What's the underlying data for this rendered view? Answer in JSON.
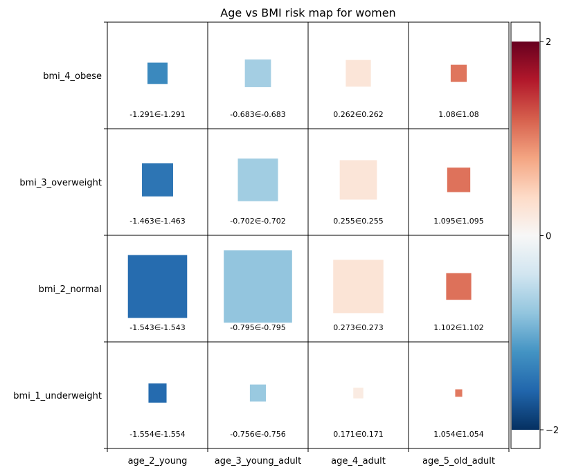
{
  "chart_data": {
    "type": "heatmap",
    "title": "Age vs BMI risk map for women",
    "xlabel": "",
    "ylabel": "",
    "x_categories": [
      "age_2_young",
      "age_3_young_adult",
      "age_4_adult",
      "age_5_old_adult"
    ],
    "y_categories": [
      "bmi_4_obese",
      "bmi_3_overweight",
      "bmi_2_normal",
      "bmi_1_underweight"
    ],
    "values": [
      [
        -1.291,
        -0.683,
        0.262,
        1.08
      ],
      [
        -1.463,
        -0.702,
        0.255,
        1.095
      ],
      [
        -1.543,
        -0.795,
        0.273,
        1.102
      ],
      [
        -1.554,
        -0.756,
        0.171,
        1.054
      ]
    ],
    "cell_labels": [
      [
        "-1.291∈-1.291",
        "-0.683∈-0.683",
        "0.262∈0.262",
        "1.08∈1.08"
      ],
      [
        "-1.463∈-1.463",
        "-0.702∈-0.702",
        "0.255∈0.255",
        "1.095∈1.095"
      ],
      [
        "-1.543∈-1.543",
        "-0.795∈-0.795",
        "0.273∈0.273",
        "1.102∈1.102"
      ],
      [
        "-1.554∈-1.554",
        "-0.756∈-0.756",
        "0.171∈0.171",
        "1.054∈1.054"
      ]
    ],
    "relative_size": [
      [
        0.2,
        0.26,
        0.25,
        0.16
      ],
      [
        0.31,
        0.4,
        0.37,
        0.23
      ],
      [
        0.59,
        0.68,
        0.5,
        0.25
      ],
      [
        0.18,
        0.16,
        0.1,
        0.07
      ]
    ],
    "colorbar": {
      "colormap": "RdBu_r",
      "vmin": -2,
      "vmax": 2,
      "ticks": [
        2,
        0,
        -2
      ],
      "tick_labels": [
        "2",
        "0",
        "−2"
      ]
    },
    "grid": true,
    "legend": "colorbar-right"
  }
}
